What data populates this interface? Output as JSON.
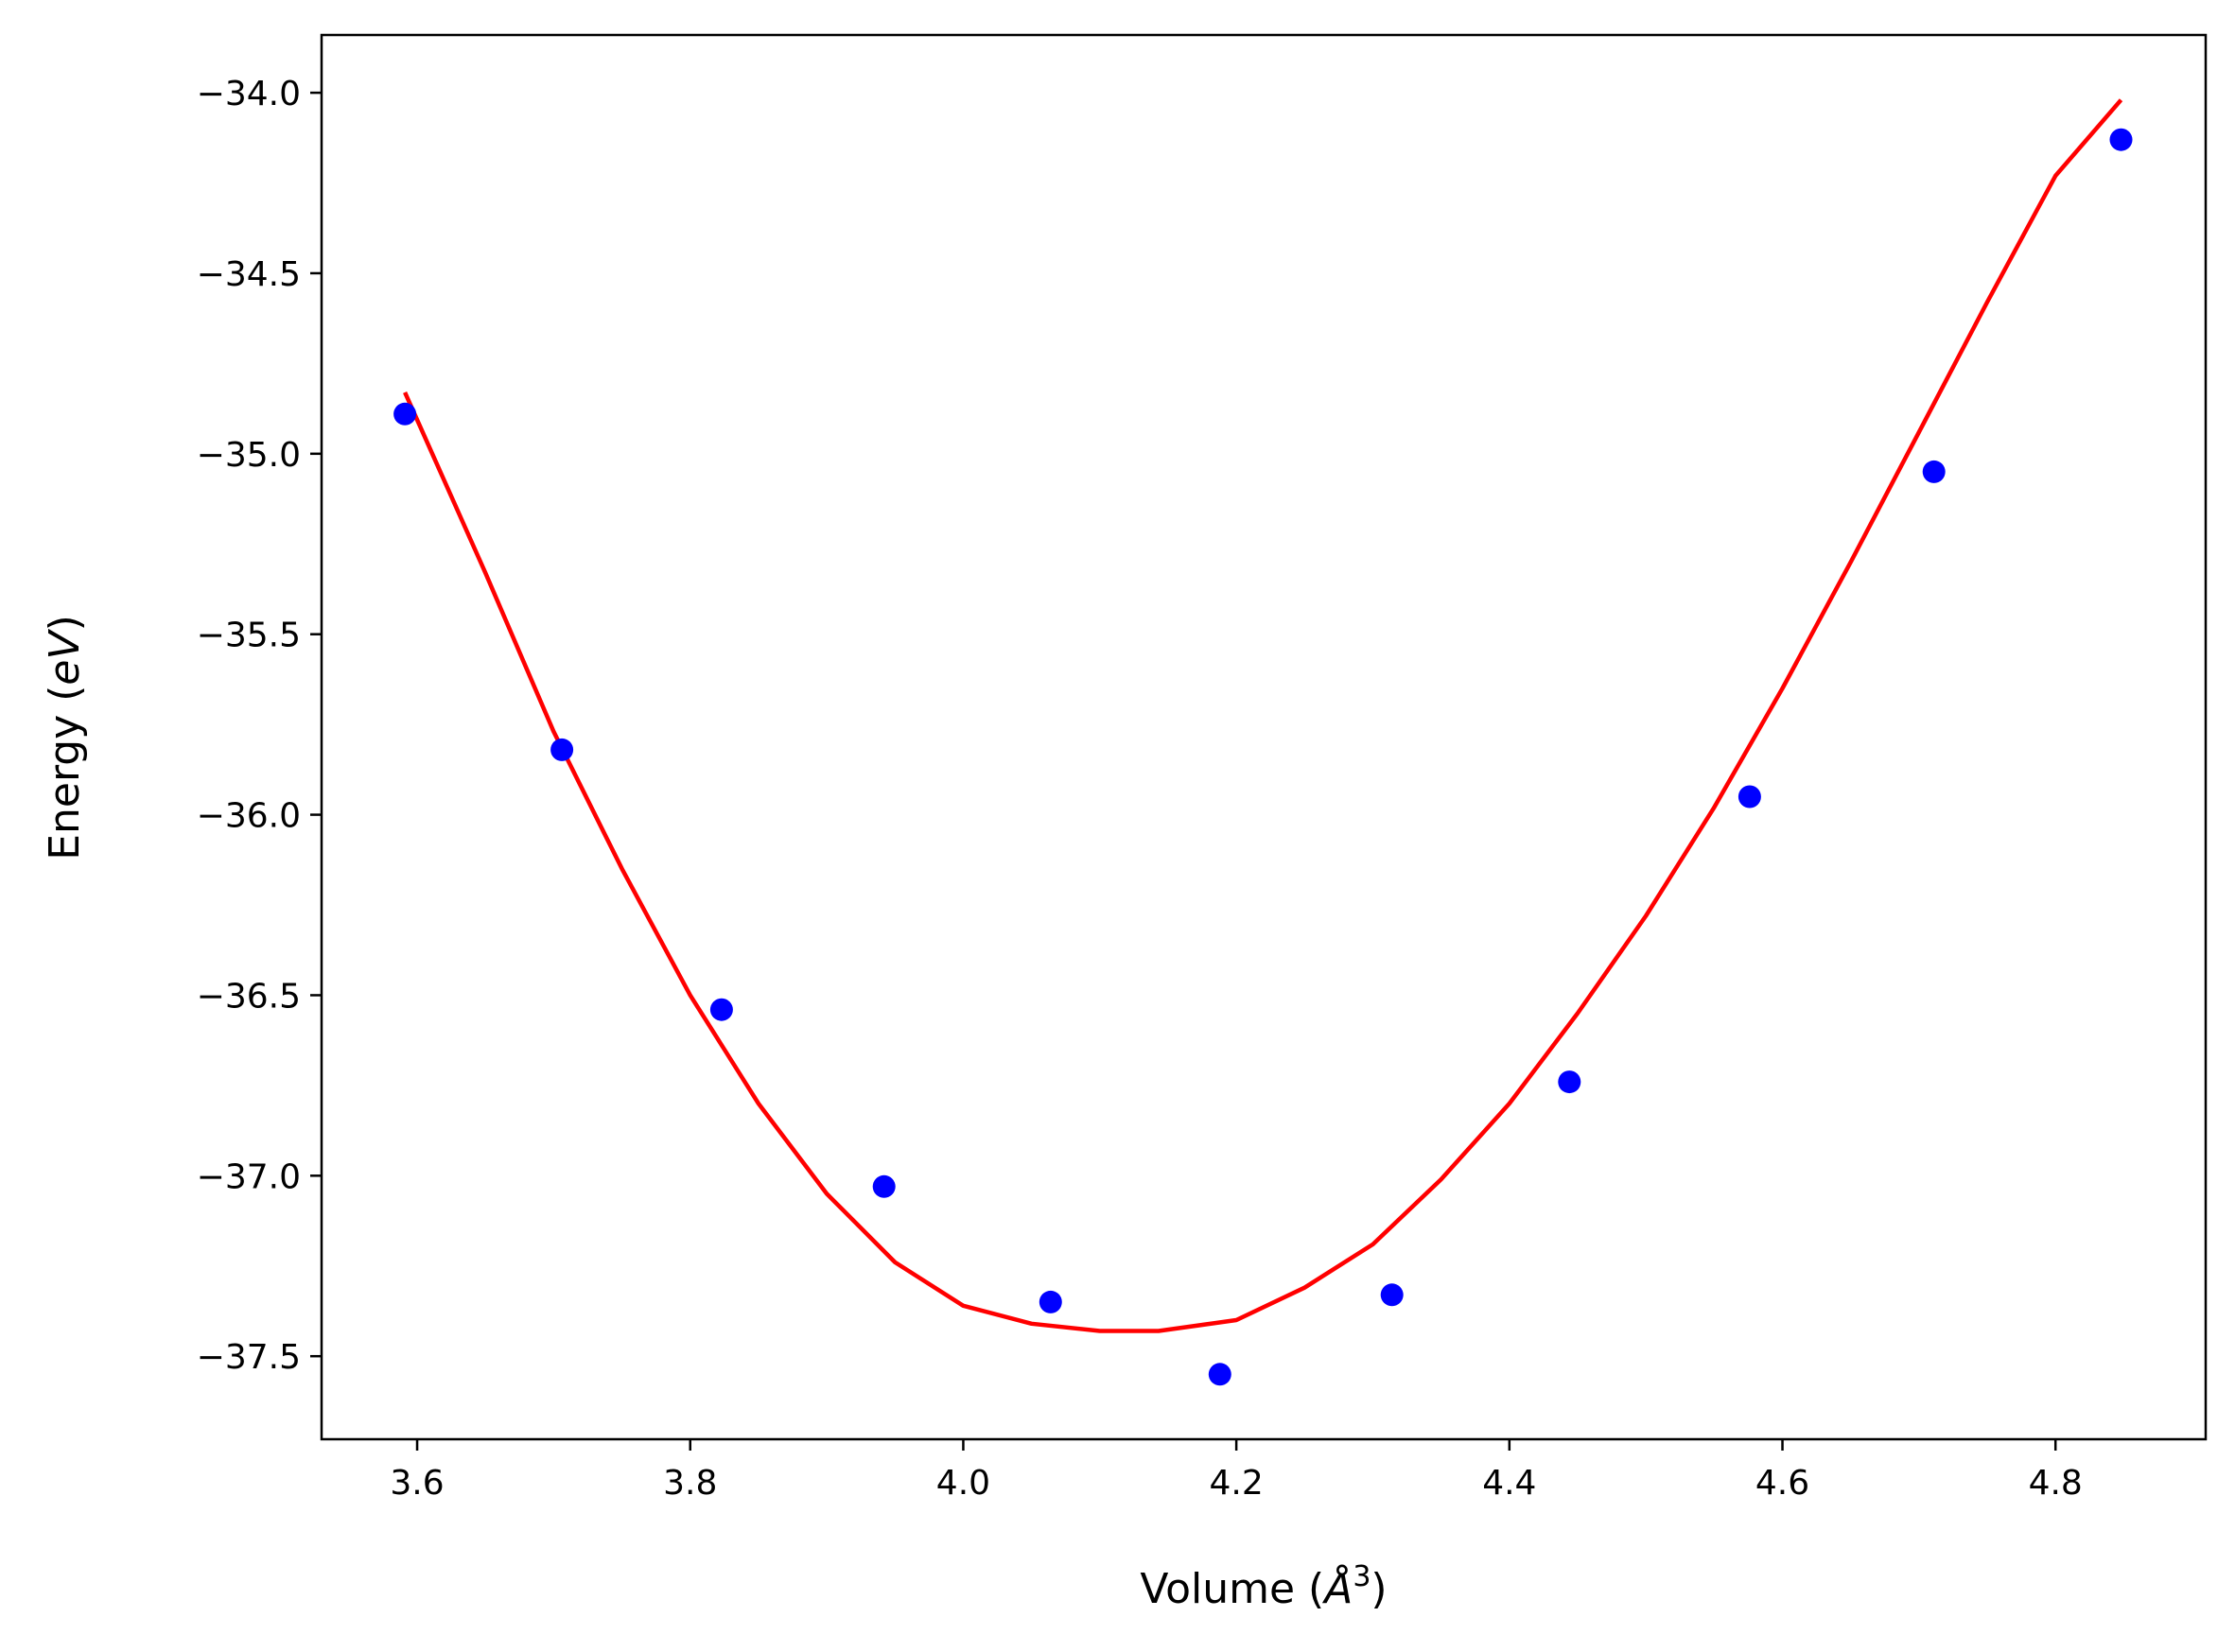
{
  "chart_data": {
    "type": "scatter",
    "title": "",
    "xlabel": "Volume (Å³)",
    "xlabel_parts": {
      "prefix": "Volume (",
      "symbol": "Å",
      "sup": "3",
      "suffix": ")"
    },
    "ylabel": "Energy (eV)",
    "ylabel_parts": {
      "prefix": "Energy (",
      "italic": "eV",
      "suffix": ")"
    },
    "xlim": [
      3.53,
      4.91
    ],
    "ylim": [
      -37.73,
      -33.84
    ],
    "x_ticks": [
      3.6,
      3.8,
      4.0,
      4.2,
      4.4,
      4.6,
      4.8
    ],
    "x_tick_labels": [
      "3.6",
      "3.8",
      "4.0",
      "4.2",
      "4.4",
      "4.6",
      "4.8"
    ],
    "y_ticks": [
      -34.0,
      -34.5,
      -35.0,
      -35.5,
      -36.0,
      -36.5,
      -37.0,
      -37.5
    ],
    "y_tick_labels": [
      "−34.0",
      "−34.5",
      "−35.0",
      "−35.5",
      "−36.0",
      "−36.5",
      "−37.0",
      "−37.5"
    ],
    "grid": false,
    "series": [
      {
        "kind": "scatter",
        "color": "#0000ff",
        "x": [
          3.591,
          3.706,
          3.823,
          3.942,
          4.064,
          4.188,
          4.314,
          4.444,
          4.576,
          4.711,
          4.848
        ],
        "y": [
          -34.89,
          -35.82,
          -36.54,
          -37.03,
          -37.35,
          -37.55,
          -37.33,
          -36.74,
          -35.95,
          -35.05,
          -34.13
        ]
      },
      {
        "kind": "line",
        "color": "#ff0000",
        "x": [
          3.591,
          3.65,
          3.7,
          3.75,
          3.8,
          3.85,
          3.9,
          3.95,
          4.0,
          4.05,
          4.1,
          4.143,
          4.2,
          4.25,
          4.3,
          4.35,
          4.4,
          4.45,
          4.5,
          4.55,
          4.6,
          4.65,
          4.7,
          4.75,
          4.8,
          4.848
        ],
        "y": [
          -34.83,
          -35.33,
          -35.77,
          -36.15,
          -36.5,
          -36.8,
          -37.05,
          -37.24,
          -37.36,
          -37.41,
          -37.43,
          -37.43,
          -37.4,
          -37.31,
          -37.19,
          -37.01,
          -36.8,
          -36.55,
          -36.28,
          -35.98,
          -35.65,
          -35.3,
          -34.94,
          -34.58,
          -34.23,
          -34.02
        ]
      }
    ]
  }
}
